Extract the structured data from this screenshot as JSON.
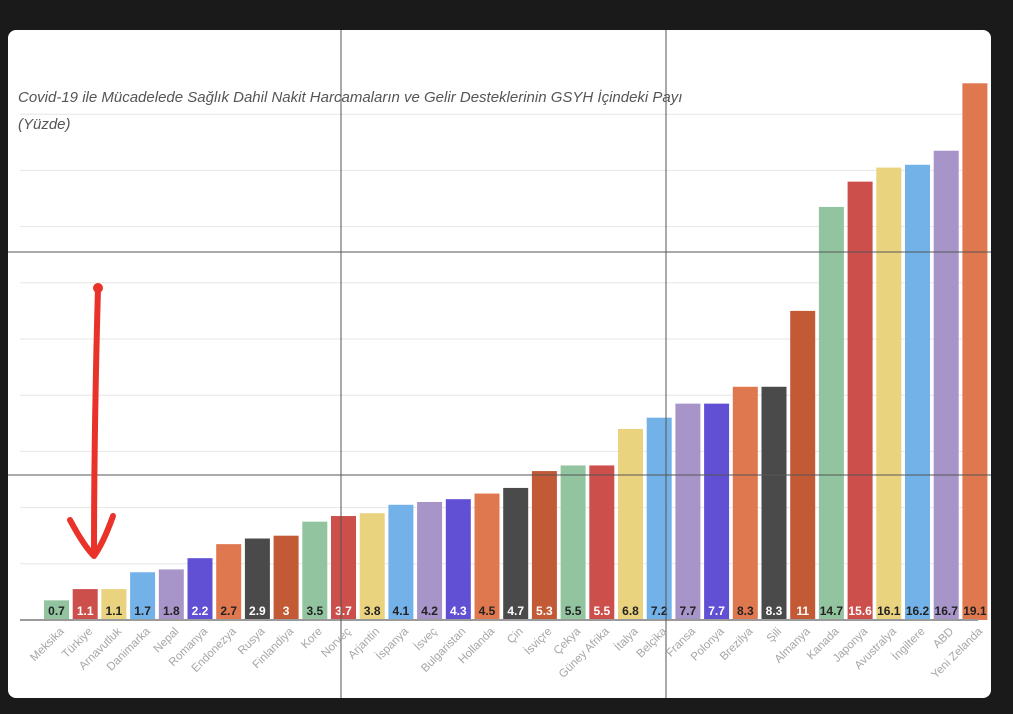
{
  "chart_data": {
    "type": "bar",
    "title_line1": "Covid-19 ile Mücadelede Sağlık Dahil Nakit Harcamaların ve Gelir Desteklerinin GSYH İçindeki Payı",
    "title_line2": "(Yüzde)",
    "categories": [
      "Meksika",
      "Türkiye",
      "Arnavutluk",
      "Danimarka",
      "Nepal",
      "Romanya",
      "Endonezya",
      "Rusya",
      "Finlandiya",
      "Kore",
      "Norveç",
      "Arjantin",
      "İspanya",
      "İsveç",
      "Bulgaristan",
      "Hollanda",
      "Çin",
      "İsviçre",
      "Çekya",
      "Güney Afrika",
      "İtalya",
      "Belçika",
      "Fransa",
      "Polonya",
      "Brezilya",
      "Şili",
      "Almanya",
      "Kanada",
      "Japonya",
      "Avustralya",
      "İngiltere",
      "ABD",
      "Yeni Zelanda"
    ],
    "values": [
      0.7,
      1.1,
      1.1,
      1.7,
      1.8,
      2.2,
      2.7,
      2.9,
      3,
      3.5,
      3.7,
      3.8,
      4.1,
      4.2,
      4.3,
      4.5,
      4.7,
      5.3,
      5.5,
      5.5,
      6.8,
      7.2,
      7.7,
      7.7,
      8.3,
      8.3,
      11,
      14.7,
      15.6,
      16.1,
      16.2,
      16.7,
      19.1
    ],
    "value_labels": [
      "0.7",
      "1.1",
      "1.1",
      "1.7",
      "1.8",
      "2.2",
      "2.7",
      "2.9",
      "3",
      "3.5",
      "3.7",
      "3.8",
      "4.1",
      "4.2",
      "4.3",
      "4.5",
      "4.7",
      "5.3",
      "5.5",
      "5.5",
      "6.8",
      "7.2",
      "7.7",
      "7.7",
      "8.3",
      "8.3",
      "11",
      "14.7",
      "15.6",
      "16.1",
      "16.2",
      "16.7",
      "19.1"
    ],
    "colors": [
      "#93c4a0",
      "#cc4f4c",
      "#e9d37f",
      "#73b2e8",
      "#a795c9",
      "#6150d4",
      "#e0784f",
      "#4a4a4a",
      "#c25a35",
      "#93c4a0",
      "#cc4f4c",
      "#e9d37f",
      "#73b2e8",
      "#a795c9",
      "#6150d4",
      "#e0784f",
      "#4a4a4a",
      "#c25a35",
      "#93c4a0",
      "#cc4f4c",
      "#e9d37f",
      "#73b2e8",
      "#a795c9",
      "#6150d4",
      "#e0784f",
      "#4a4a4a",
      "#c25a35",
      "#93c4a0",
      "#cc4f4c",
      "#e9d37f",
      "#73b2e8",
      "#a795c9",
      "#e0784f"
    ],
    "label_colors": [
      "#222222",
      "#ffffff",
      "#222222",
      "#222222",
      "#222222",
      "#ffffff",
      "#222222",
      "#ffffff",
      "#ffffff",
      "#222222",
      "#ffffff",
      "#222222",
      "#222222",
      "#222222",
      "#ffffff",
      "#222222",
      "#ffffff",
      "#ffffff",
      "#222222",
      "#ffffff",
      "#222222",
      "#222222",
      "#222222",
      "#ffffff",
      "#222222",
      "#ffffff",
      "#ffffff",
      "#222222",
      "#ffffff",
      "#222222",
      "#222222",
      "#222222",
      "#222222"
    ],
    "ylim": [
      0,
      20
    ],
    "grid": true,
    "annotation": {
      "type": "arrow",
      "color": "#e8322a",
      "target": "Türkiye"
    }
  }
}
